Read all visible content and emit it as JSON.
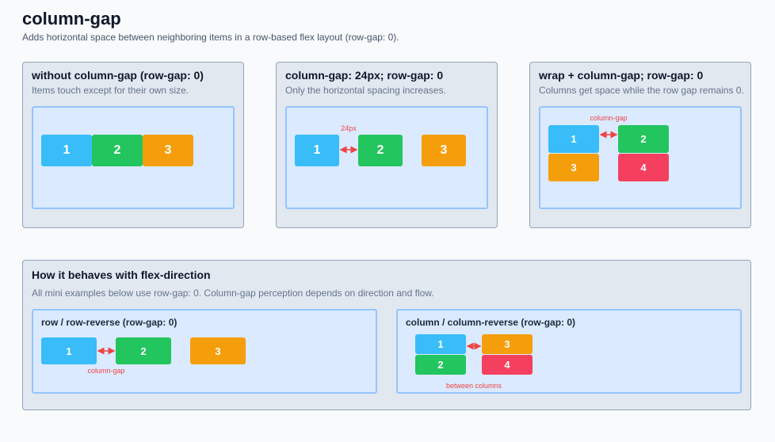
{
  "header": {
    "title": "column-gap",
    "subtitle": "Adds horizontal space between neighboring items in a row-based flex layout (row-gap: 0)."
  },
  "cards": [
    {
      "title": "without column-gap (row-gap: 0)",
      "description": "Items touch except for their own size.",
      "items": [
        "1",
        "2",
        "3"
      ]
    },
    {
      "title": "column-gap: 24px; row-gap: 0",
      "description": "Only the horizontal spacing increases.",
      "gap_label": "24px",
      "items": [
        "1",
        "2",
        "3"
      ]
    },
    {
      "title": "wrap + column-gap; row-gap: 0",
      "description": "Columns get space while the row gap remains 0.",
      "gap_label": "column-gap",
      "items": [
        "1",
        "2",
        "3",
        "4"
      ]
    }
  ],
  "flex_direction": {
    "title": "How it behaves with flex-direction",
    "description": "All mini examples below use row-gap: 0. Column-gap perception depends on direction and flow.",
    "examples": [
      {
        "title": "row / row-reverse (row-gap: 0)",
        "items": [
          "1",
          "2",
          "3"
        ],
        "note": "column-gap"
      },
      {
        "title": "column / column-reverse (row-gap: 0)",
        "items": [
          "1",
          "2",
          "3",
          "4"
        ],
        "note": "between columns"
      }
    ]
  }
}
